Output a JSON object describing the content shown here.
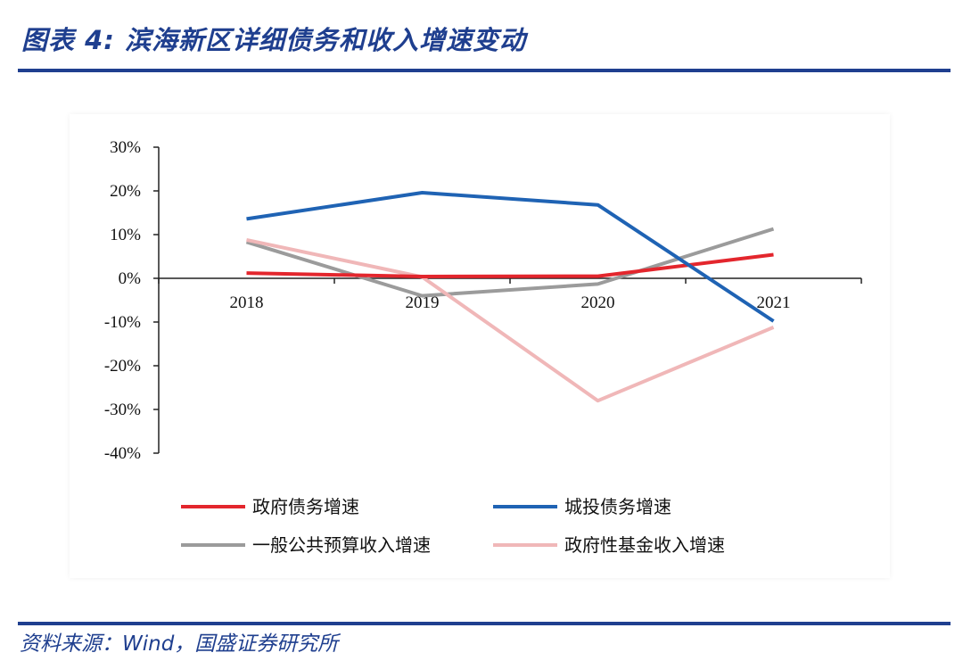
{
  "page": {
    "title": "图表 4:    滨海新区详细债务和收入增速变动",
    "source": "资料来源：Wind，国盛证券研究所"
  },
  "chart_data": {
    "type": "line",
    "categories": [
      "2018",
      "2019",
      "2020",
      "2021"
    ],
    "y_tick_labels": [
      "30%",
      "20%",
      "10%",
      "0%",
      "-10%",
      "-20%",
      "-30%",
      "-40%"
    ],
    "ylim": [
      -40,
      30
    ],
    "y_unit": "%",
    "grid": false,
    "legend_position": "bottom",
    "series": [
      {
        "name": "政府债务增速",
        "values": [
          1.2,
          0.4,
          0.5,
          5.4
        ],
        "color": "#e3262d"
      },
      {
        "name": "城投债务增速",
        "values": [
          13.6,
          19.6,
          16.8,
          -9.8
        ],
        "color": "#1f63b4"
      },
      {
        "name": "一般公共预算收入增速",
        "values": [
          8.3,
          -4.0,
          -1.3,
          11.3
        ],
        "color": "#9b9b9b"
      },
      {
        "name": "政府性基金收入增速",
        "values": [
          8.8,
          0.3,
          -28.0,
          -11.2
        ],
        "color": "#f0b7b8"
      }
    ],
    "legend_order": [
      0,
      1,
      2,
      3
    ]
  }
}
